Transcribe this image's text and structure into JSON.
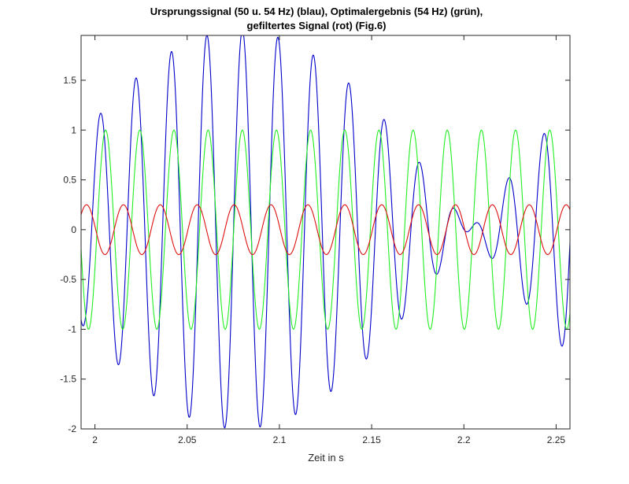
{
  "chart_data": {
    "type": "line",
    "title_line1": "Ursprungssignal (50 u. 54 Hz) (blau), Optimalergebnis (54 Hz) (grün),",
    "title_line2": "gefiltertes Signal (rot) (Fig.6)",
    "xlabel": "Zeit in s",
    "ylabel": "",
    "xlim": [
      1.9925,
      2.2575
    ],
    "ylim": [
      -2.0,
      1.95
    ],
    "xticks": [
      2.0,
      2.05,
      2.1,
      2.15,
      2.2,
      2.25
    ],
    "xtick_labels": [
      "2",
      "2.05",
      "2.1",
      "2.15",
      "2.2",
      "2.25"
    ],
    "yticks": [
      -2.0,
      -1.5,
      -1.0,
      -0.5,
      0.0,
      0.5,
      1.0,
      1.5
    ],
    "ytick_labels": [
      "-2",
      "-1.5",
      "-1",
      "-0.5",
      "0",
      "0.5",
      "1",
      "1.5"
    ],
    "grid": false,
    "series": [
      {
        "name": "blau",
        "color": "#0000cc",
        "formula": "sin(2π·50·t + 1.5708) + sin(2π·54·t − 0.4)",
        "frequencies_hz": [
          50,
          54
        ],
        "amplitudes": [
          1,
          1
        ]
      },
      {
        "name": "grün",
        "color": "#22ee22",
        "formula": "sin(2π·54·t − 0.4)",
        "frequencies_hz": [
          54
        ],
        "amplitudes": [
          1
        ]
      },
      {
        "name": "rot",
        "color": "#dd1111",
        "formula": "0.25·sin(2π·50·t + 3.0)",
        "frequencies_hz": [
          50
        ],
        "amplitudes": [
          0.25
        ]
      }
    ]
  }
}
